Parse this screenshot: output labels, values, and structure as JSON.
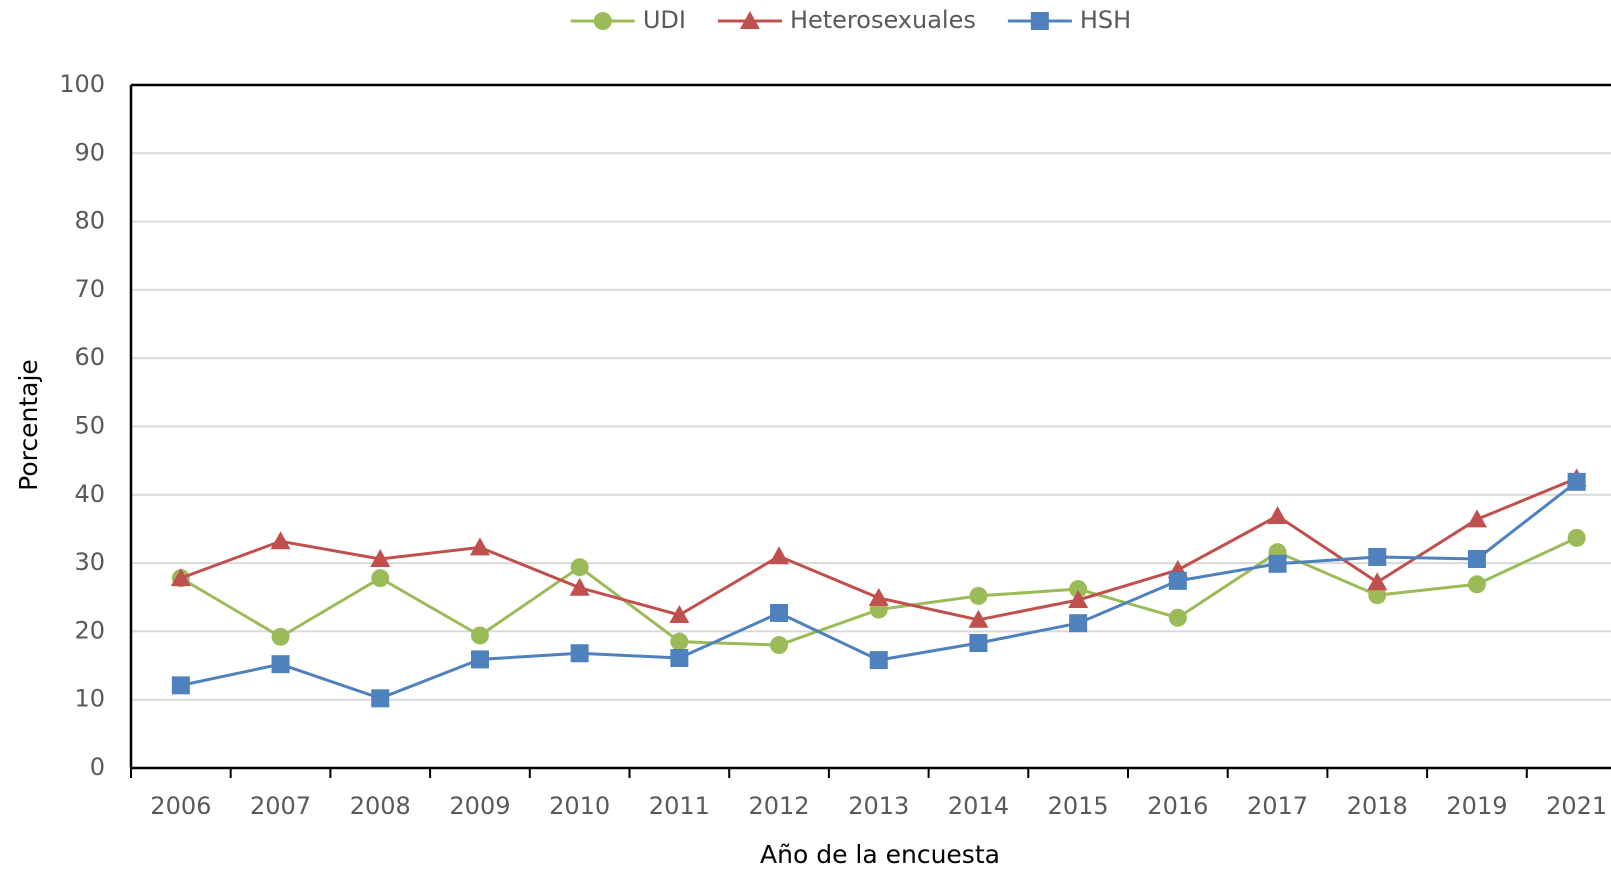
{
  "chart_data": {
    "type": "line",
    "x_label": "Año de la encuesta",
    "y_label": "Porcentaje",
    "categories": [
      "2006",
      "2007",
      "2008",
      "2009",
      "2010",
      "2011",
      "2012",
      "2013",
      "2014",
      "2015",
      "2016",
      "2017",
      "2018",
      "2019",
      "2021"
    ],
    "series": [
      {
        "name": "UDI",
        "color": "#9bbb59",
        "marker": "circle",
        "values": [
          27.8,
          19.2,
          27.8,
          19.4,
          29.4,
          18.5,
          18.0,
          23.2,
          25.2,
          26.2,
          22.0,
          31.6,
          25.3,
          26.9,
          33.7
        ]
      },
      {
        "name": "Heterosexuales",
        "color": "#c0504d",
        "marker": "triangle",
        "values": [
          27.8,
          33.2,
          30.6,
          32.3,
          26.4,
          22.4,
          31.0,
          24.9,
          21.7,
          24.6,
          29.0,
          36.9,
          27.2,
          36.4,
          42.4
        ]
      },
      {
        "name": "HSH",
        "color": "#4f81bd",
        "marker": "square",
        "values": [
          12.1,
          15.2,
          10.2,
          15.9,
          16.8,
          16.1,
          22.7,
          15.8,
          18.3,
          21.2,
          27.4,
          29.9,
          30.9,
          30.6,
          41.9
        ]
      }
    ],
    "ylim": [
      0,
      100
    ],
    "yticks": [
      0,
      10,
      20,
      30,
      40,
      50,
      60,
      70,
      80,
      90,
      100
    ],
    "grid": true,
    "legend": "top"
  }
}
